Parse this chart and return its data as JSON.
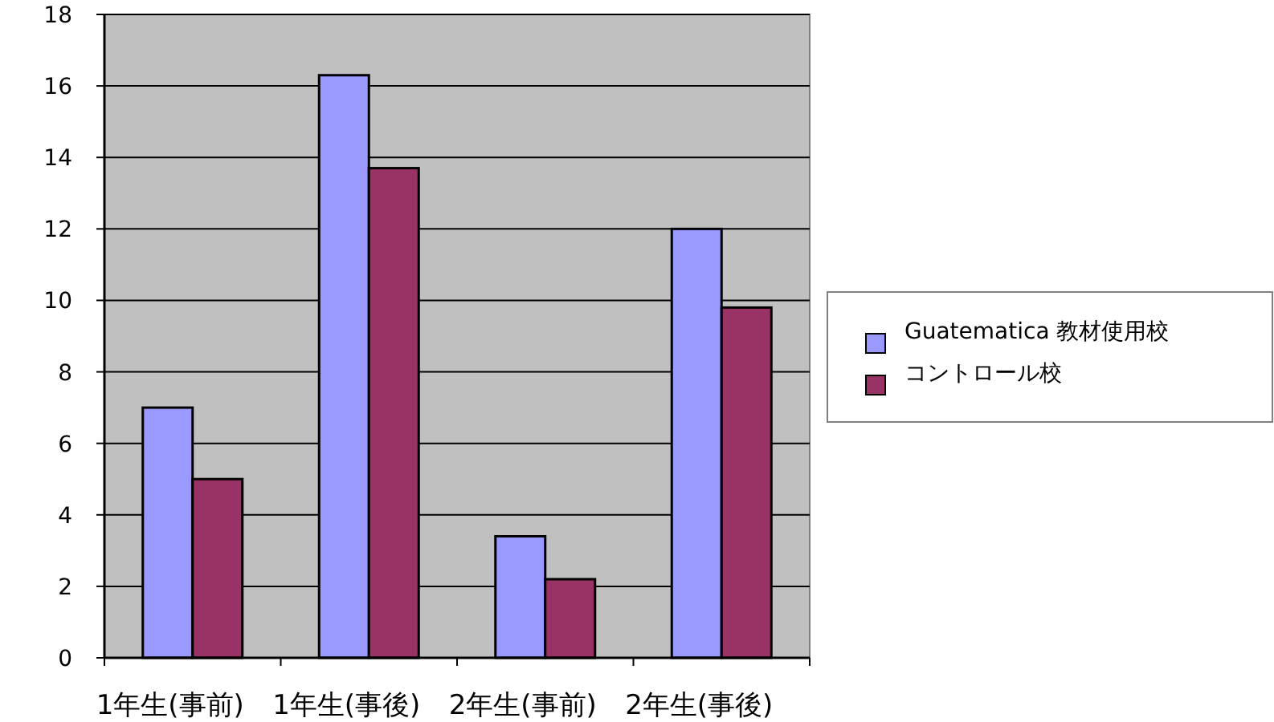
{
  "chart_data": {
    "type": "bar",
    "categories": [
      "1年生(事前)",
      "1年生(事後)",
      "2年生(事前)",
      "2年生(事後)"
    ],
    "series": [
      {
        "name": "Guatematica 教材使用校",
        "color": "#9999ff",
        "values": [
          7,
          16.3,
          3.4,
          12
        ]
      },
      {
        "name": "コントロール校",
        "color": "#993366",
        "values": [
          5,
          13.7,
          2.2,
          9.8
        ]
      }
    ],
    "ylim": [
      0,
      18
    ],
    "yticks": [
      0,
      2,
      4,
      6,
      8,
      10,
      12,
      14,
      16,
      18
    ],
    "grid": "y",
    "legend": "right"
  }
}
